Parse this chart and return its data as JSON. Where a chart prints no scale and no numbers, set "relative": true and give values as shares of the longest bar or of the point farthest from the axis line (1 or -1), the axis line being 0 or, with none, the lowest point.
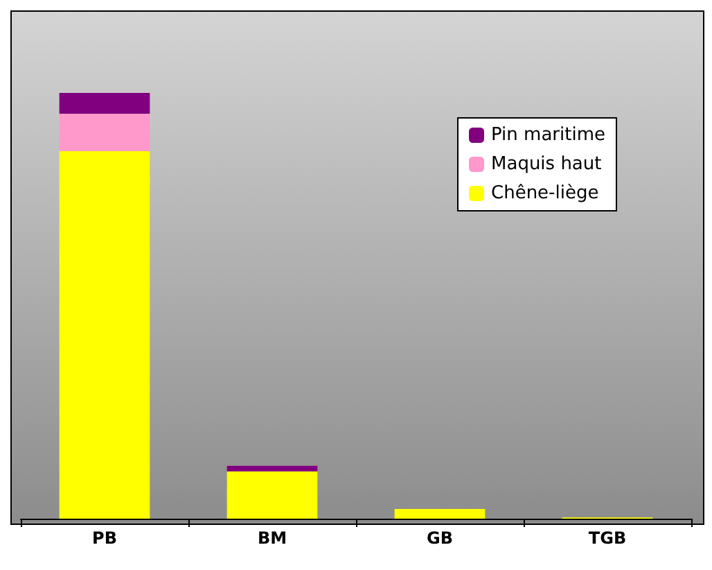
{
  "chart_data": {
    "type": "bar",
    "stacked": true,
    "relative": true,
    "categories": [
      "PB",
      "BM",
      "GB",
      "TGB"
    ],
    "series": [
      {
        "name": "Chêne-liège",
        "color": "#ffff00",
        "values": [
          0.863,
          0.111,
          0.023,
          0.003
        ]
      },
      {
        "name": "Maquis haut",
        "color": "#ff99cc",
        "values": [
          0.088,
          0,
          0,
          0
        ]
      },
      {
        "name": "Pin maritime",
        "color": "#800080",
        "values": [
          0.049,
          0.013,
          0,
          0
        ]
      }
    ],
    "legend": "top right"
  }
}
